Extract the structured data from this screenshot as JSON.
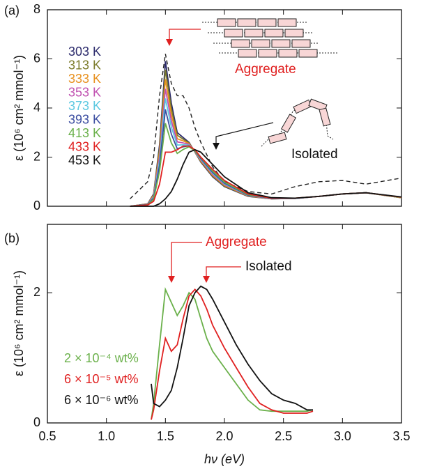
{
  "chart_data": [
    {
      "type": "line",
      "panel_label": "(a)",
      "ylabel": "ε (10⁶ cm² mmol⁻¹)",
      "xlim": [
        0.5,
        3.5
      ],
      "ylim": [
        0,
        8
      ],
      "yticks": [
        0,
        2,
        4,
        6,
        8
      ],
      "x": [
        1.2,
        1.35,
        1.4,
        1.45,
        1.5,
        1.55,
        1.6,
        1.65,
        1.7,
        1.75,
        1.8,
        1.9,
        2.0,
        2.2,
        2.4,
        2.6,
        2.8,
        3.0,
        3.2,
        3.5
      ],
      "series": [
        {
          "color": "#222222",
          "dash": true,
          "values": [
            0.3,
            1.0,
            2.0,
            4.5,
            6.2,
            5.0,
            4.5,
            4.5,
            4.0,
            3.2,
            2.6,
            1.6,
            1.0,
            0.6,
            0.5,
            0.8,
            1.0,
            1.05,
            0.9,
            1.15
          ]
        },
        {
          "name": "303 K",
          "color": "#2b2a6b",
          "values": [
            0,
            0.1,
            0.5,
            2.5,
            5.9,
            4.2,
            3.0,
            2.8,
            2.6,
            2.2,
            1.8,
            1.2,
            0.8,
            0.4,
            0.3,
            0.32,
            0.4,
            0.5,
            0.55,
            0.35
          ]
        },
        {
          "name": "313 K",
          "color": "#7b7b2a",
          "values": [
            0,
            0.09,
            0.47,
            2.36,
            5.56,
            3.98,
            2.89,
            2.73,
            2.58,
            2.21,
            1.82,
            1.23,
            0.82,
            0.41,
            0.3,
            0.32,
            0.4,
            0.5,
            0.55,
            0.35
          ]
        },
        {
          "name": "333 K",
          "color": "#e8901e",
          "values": [
            0,
            0.09,
            0.44,
            2.19,
            5.17,
            3.73,
            2.75,
            2.66,
            2.55,
            2.21,
            1.85,
            1.26,
            0.85,
            0.42,
            0.31,
            0.32,
            0.4,
            0.5,
            0.55,
            0.35
          ]
        },
        {
          "name": "353 K",
          "color": "#c050b0",
          "values": [
            0,
            0.08,
            0.4,
            2.02,
            4.78,
            3.48,
            2.62,
            2.58,
            2.52,
            2.22,
            1.88,
            1.3,
            0.88,
            0.43,
            0.31,
            0.32,
            0.4,
            0.5,
            0.55,
            0.36
          ]
        },
        {
          "name": "373 K",
          "color": "#5bc8e0",
          "values": [
            0,
            0.07,
            0.37,
            1.85,
            4.39,
            3.23,
            2.49,
            2.5,
            2.49,
            2.23,
            1.91,
            1.34,
            0.91,
            0.44,
            0.32,
            0.32,
            0.4,
            0.5,
            0.55,
            0.36
          ]
        },
        {
          "name": "393 K",
          "color": "#3a4ca0",
          "values": [
            0,
            0.07,
            0.33,
            1.66,
            3.94,
            2.94,
            2.34,
            2.42,
            2.46,
            2.24,
            1.94,
            1.38,
            0.94,
            0.45,
            0.32,
            0.32,
            0.4,
            0.5,
            0.55,
            0.36
          ]
        },
        {
          "name": "413 K",
          "color": "#6ab04a",
          "values": [
            0,
            0.06,
            0.28,
            1.42,
            3.38,
            2.58,
            2.15,
            2.31,
            2.42,
            2.25,
            1.98,
            1.43,
            0.98,
            0.47,
            0.33,
            0.33,
            0.4,
            0.5,
            0.55,
            0.36
          ]
        },
        {
          "name": "433 K",
          "color": "#e02020",
          "values": [
            0,
            0.05,
            0.2,
            0.9,
            2.2,
            2.2,
            2.3,
            2.45,
            2.45,
            2.3,
            2.0,
            1.5,
            1.05,
            0.5,
            0.33,
            0.33,
            0.4,
            0.5,
            0.55,
            0.37
          ]
        },
        {
          "name": "453 K",
          "color": "#111111",
          "values": [
            0,
            0,
            0,
            0.1,
            0.3,
            0.6,
            1.1,
            1.7,
            2.2,
            2.3,
            2.2,
            1.7,
            1.2,
            0.55,
            0.35,
            0.33,
            0.4,
            0.5,
            0.55,
            0.38
          ]
        }
      ],
      "annotations": [
        "Aggregate",
        "Isolated"
      ]
    },
    {
      "type": "line",
      "panel_label": "(b)",
      "ylabel": "ε (10⁶ cm² mmol⁻¹)",
      "xlabel": "hν (eV)",
      "xlim": [
        0.5,
        3.5
      ],
      "ylim": [
        0,
        3.05
      ],
      "yticks": [
        0,
        2
      ],
      "xticks": [
        0.5,
        {
          "value": 1,
          "label": "1.0"
        },
        1.5,
        {
          "value": 2,
          "label": "2.0"
        },
        2.5,
        {
          "value": 3,
          "label": "3.0"
        },
        3.5
      ],
      "x": [
        1.38,
        1.4,
        1.45,
        1.5,
        1.55,
        1.6,
        1.65,
        1.7,
        1.75,
        1.8,
        1.85,
        1.9,
        2.0,
        2.1,
        2.2,
        2.3,
        2.4,
        2.5,
        2.6,
        2.7,
        2.75
      ],
      "series": [
        {
          "name": "2 × 10⁻⁴ wt%",
          "color": "#6ab04a",
          "values": [
            0.05,
            0.3,
            1.2,
            2.05,
            1.85,
            1.65,
            1.8,
            2.0,
            1.9,
            1.6,
            1.3,
            1.1,
            0.85,
            0.6,
            0.35,
            0.2,
            0.18,
            0.18,
            0.18,
            0.18,
            0.2
          ]
        },
        {
          "name": "6 × 10⁻⁵ wt%",
          "color": "#e02020",
          "values": [
            0.05,
            0.2,
            0.8,
            1.3,
            1.1,
            1.2,
            1.6,
            1.95,
            2.05,
            1.95,
            1.75,
            1.5,
            1.15,
            0.85,
            0.55,
            0.3,
            0.2,
            0.15,
            0.15,
            0.15,
            0.18
          ]
        },
        {
          "name": "6 × 10⁻⁶ wt%",
          "color": "#111111",
          "values": [
            0.6,
            0.3,
            0.25,
            0.35,
            0.5,
            0.85,
            1.3,
            1.8,
            2.0,
            2.1,
            2.05,
            1.9,
            1.55,
            1.2,
            0.9,
            0.65,
            0.45,
            0.35,
            0.3,
            0.2,
            0.2
          ]
        }
      ],
      "annotations": [
        "Aggregate",
        "Isolated"
      ]
    }
  ]
}
